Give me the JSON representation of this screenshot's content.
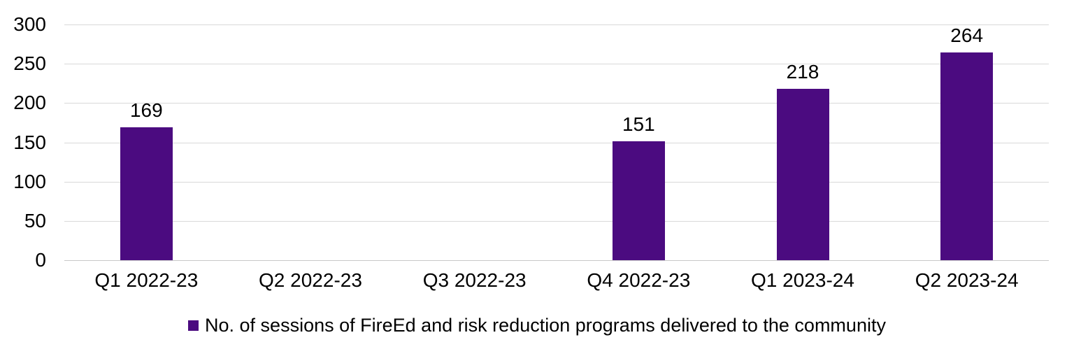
{
  "chart_data": {
    "type": "bar",
    "title": "",
    "categories": [
      "Q1 2022-23",
      "Q2 2022-23",
      "Q3 2022-23",
      "Q4 2022-23",
      "Q1 2023-24",
      "Q2 2023-24"
    ],
    "series": [
      {
        "name": "No. of sessions of FireEd and risk reduction programs delivered to the community",
        "values": [
          169,
          null,
          null,
          151,
          218,
          264
        ]
      }
    ],
    "data_labels": [
      "169",
      "",
      "",
      "151",
      "218",
      "264"
    ],
    "xlabel": "",
    "ylabel": "",
    "ylim": [
      0,
      300
    ],
    "yticks": [
      0,
      50,
      100,
      150,
      200,
      250,
      300
    ],
    "grid": "horizontal",
    "legend_position": "bottom-center",
    "colors": {
      "bar": "#4B0B80",
      "gridline": "#D9D9D9",
      "axis_line": "#C9C9C9",
      "text": "#000000",
      "background": "#FFFFFF"
    }
  },
  "legend": {
    "swatch_icon": "square-swatch-icon"
  }
}
